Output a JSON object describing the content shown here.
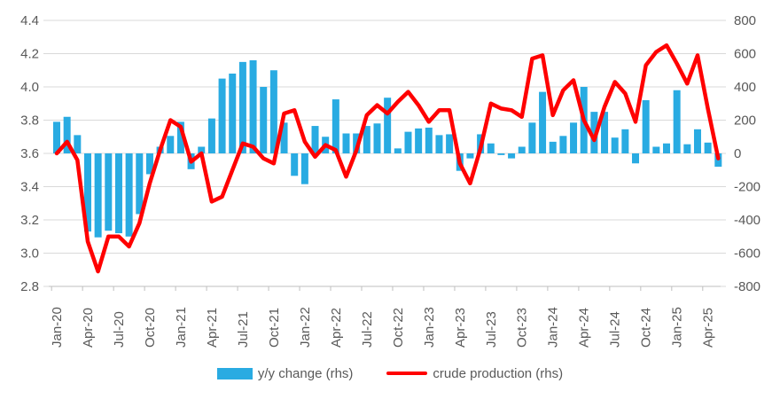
{
  "chart_data": {
    "type": "bar+line combo",
    "title": "",
    "x": [
      "Jan-20",
      "Feb-20",
      "Mar-20",
      "Apr-20",
      "May-20",
      "Jun-20",
      "Jul-20",
      "Aug-20",
      "Sep-20",
      "Oct-20",
      "Nov-20",
      "Dec-20",
      "Jan-21",
      "Feb-21",
      "Mar-21",
      "Apr-21",
      "May-21",
      "Jun-21",
      "Jul-21",
      "Aug-21",
      "Sep-21",
      "Oct-21",
      "Nov-21",
      "Dec-21",
      "Jan-22",
      "Feb-22",
      "Mar-22",
      "Apr-22",
      "May-22",
      "Jun-22",
      "Jul-22",
      "Aug-22",
      "Sep-22",
      "Oct-22",
      "Nov-22",
      "Dec-22",
      "Jan-23",
      "Feb-23",
      "Mar-23",
      "Apr-23",
      "May-23",
      "Jun-23",
      "Jul-23",
      "Aug-23",
      "Sep-23",
      "Oct-23",
      "Nov-23",
      "Dec-23",
      "Jan-24",
      "Feb-24",
      "Mar-24",
      "Apr-24",
      "May-24",
      "Jun-24",
      "Jul-24",
      "Aug-24",
      "Sep-24",
      "Oct-24",
      "Nov-24",
      "Dec-24",
      "Jan-25",
      "Feb-25",
      "Mar-25",
      "Apr-25",
      "May-25"
    ],
    "x_tick_labels": [
      "Jan-20",
      "Apr-20",
      "Jul-20",
      "Oct-20",
      "Jan-21",
      "Apr-21",
      "Jul-21",
      "Oct-21",
      "Jan-22",
      "Apr-22",
      "Jul-22",
      "Oct-22",
      "Jan-23",
      "Apr-23",
      "Jul-23",
      "Oct-23",
      "Jan-24",
      "Apr-24",
      "Jul-24",
      "Oct-24",
      "Jan-25",
      "Apr-25"
    ],
    "x_tick_every": 3,
    "series": [
      {
        "name": "y/y change (rhs)",
        "type": "bar",
        "axis": "right",
        "color": "#29ABE2",
        "values": [
          190,
          220,
          110,
          -470,
          -505,
          -465,
          -480,
          -500,
          -365,
          -125,
          40,
          105,
          190,
          -95,
          40,
          210,
          450,
          480,
          550,
          560,
          400,
          500,
          185,
          -135,
          -185,
          165,
          100,
          325,
          120,
          120,
          165,
          180,
          335,
          30,
          130,
          150,
          155,
          110,
          115,
          -105,
          -30,
          115,
          60,
          -10,
          -30,
          40,
          185,
          370,
          70,
          105,
          185,
          400,
          250,
          250,
          95,
          145,
          -60,
          320,
          40,
          60,
          380,
          55,
          145,
          65,
          -80
        ]
      },
      {
        "name": "crude production (rhs)",
        "type": "line",
        "axis": "left",
        "color": "#FF0000",
        "values": [
          3.6,
          3.67,
          3.56,
          3.07,
          2.89,
          3.1,
          3.1,
          3.04,
          3.18,
          3.42,
          3.62,
          3.8,
          3.76,
          3.55,
          3.6,
          3.31,
          3.34,
          3.5,
          3.66,
          3.64,
          3.57,
          3.54,
          3.84,
          3.86,
          3.67,
          3.58,
          3.65,
          3.62,
          3.46,
          3.62,
          3.83,
          3.89,
          3.84,
          3.91,
          3.97,
          3.89,
          3.79,
          3.86,
          3.86,
          3.54,
          3.42,
          3.63,
          3.9,
          3.87,
          3.86,
          3.82,
          4.17,
          4.19,
          3.83,
          3.98,
          4.04,
          3.8,
          3.68,
          3.88,
          4.03,
          3.96,
          3.79,
          4.13,
          4.21,
          4.25,
          4.14,
          4.02,
          4.19,
          3.87,
          3.57
        ]
      }
    ],
    "left_axis": {
      "min": 2.8,
      "max": 4.4,
      "tick_labels": [
        "4.4",
        "4.2",
        "4.0",
        "3.8",
        "3.6",
        "3.4",
        "3.2",
        "3.0",
        "2.8"
      ]
    },
    "right_axis": {
      "min": -800,
      "max": 800,
      "tick_labels": [
        "800",
        "600",
        "400",
        "200",
        "0",
        "-200",
        "-400",
        "-600",
        "-800"
      ]
    },
    "grid": true,
    "legend_position": "bottom",
    "colors": {
      "gridline": "#D9D9D9",
      "axis_line": "#BFBFBF",
      "axis_text": "#595959"
    }
  },
  "legend": {
    "bar_label": "y/y change (rhs)",
    "line_label": "crude production (rhs)"
  }
}
